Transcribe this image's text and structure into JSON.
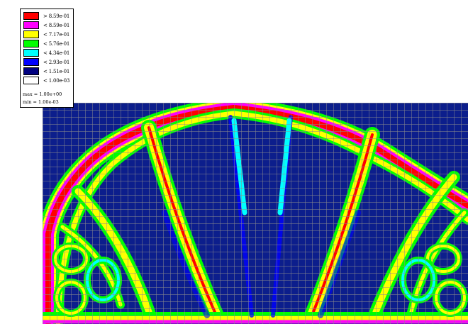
{
  "legend": {
    "entries": [
      {
        "label": ">  8.59e-01",
        "color": "#ff0000"
      },
      {
        "label": "<  8.59e-01",
        "color": "#ff00ff"
      },
      {
        "label": "<  7.17e-01",
        "color": "#ffff00"
      },
      {
        "label": "<  5.76e-01",
        "color": "#00ff00"
      },
      {
        "label": "<  4.34e-01",
        "color": "#00ffff"
      },
      {
        "label": "<  2.93e-01",
        "color": "#0000ff"
      },
      {
        "label": "<  1.51e-01",
        "color": "#000080"
      },
      {
        "label": "<  1.00e-03",
        "color": "#ffffff"
      }
    ],
    "max_label": "max = 1.00e+00",
    "min_label": "min = 1.00e-03"
  },
  "colors": {
    "background_density": "#0c1e8c",
    "mesh_lines": "#8c8c8c",
    "red": "#ff0000",
    "magenta": "#ff00ff",
    "yellow": "#ffff00",
    "green": "#00ff00",
    "cyan": "#00ffff",
    "blue": "#0000ff"
  }
}
